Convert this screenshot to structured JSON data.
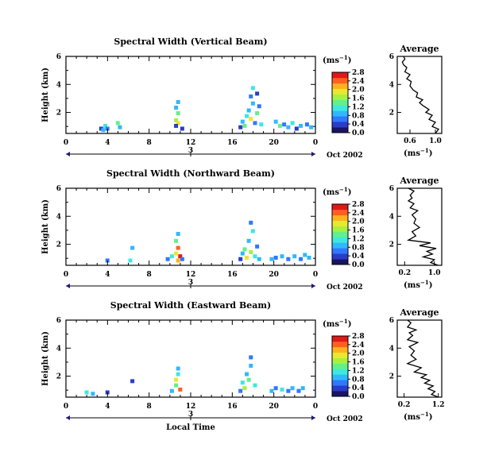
{
  "figure": {
    "xlabel": "Local Time",
    "date_label": "Oct 2002",
    "day_label": "3",
    "unit_label": "(ms⁻¹)",
    "colorscale": [
      "#1a1466",
      "#2a3cc8",
      "#2f78ff",
      "#30b8ff",
      "#3ee8e0",
      "#62f08a",
      "#a8f040",
      "#e8e830",
      "#ffb020",
      "#ff6020",
      "#e01818"
    ]
  },
  "chart_data": [
    {
      "id": "vertical",
      "type": "heatmap",
      "title": "Spectral Width (Vertical Beam)",
      "xlabel": "",
      "ylabel": "Height (km)",
      "x_ticks": [
        "0",
        "4",
        "8",
        "12",
        "16",
        "20",
        "0"
      ],
      "y_ticks": [
        "2",
        "4",
        "6"
      ],
      "xlim": [
        0,
        24
      ],
      "ylim": [
        0.5,
        6
      ],
      "colorbar": {
        "label": "(ms⁻¹)",
        "ticks": [
          "0.0",
          "0.4",
          "0.8",
          "1.2",
          "1.6",
          "2.0",
          "2.4",
          "2.8"
        ],
        "range": [
          0,
          2.8
        ]
      },
      "cells": [
        [
          3.2,
          0.7,
          0.5
        ],
        [
          3.4,
          0.6,
          0.8
        ],
        [
          3.6,
          0.9,
          1.2
        ],
        [
          3.8,
          0.7,
          0.6
        ],
        [
          4.8,
          1.1,
          1.4
        ],
        [
          5.0,
          0.8,
          0.9
        ],
        [
          10.4,
          1.3,
          1.6
        ],
        [
          10.6,
          1.1,
          2.0
        ],
        [
          10.6,
          1.8,
          1.4
        ],
        [
          10.4,
          2.2,
          0.9
        ],
        [
          10.6,
          2.6,
          1.0
        ],
        [
          10.4,
          0.9,
          0.5
        ],
        [
          11.0,
          0.7,
          0.3
        ],
        [
          16.6,
          0.8,
          0.4
        ],
        [
          16.8,
          1.2,
          1.0
        ],
        [
          17.0,
          0.9,
          1.5
        ],
        [
          17.2,
          1.6,
          1.2
        ],
        [
          17.4,
          2.0,
          0.8
        ],
        [
          17.6,
          1.4,
          1.9
        ],
        [
          17.8,
          2.5,
          1.0
        ],
        [
          17.6,
          3.0,
          0.6
        ],
        [
          17.8,
          3.6,
          1.1
        ],
        [
          18.0,
          1.1,
          0.6
        ],
        [
          18.2,
          1.8,
          1.4
        ],
        [
          18.4,
          2.3,
          0.7
        ],
        [
          18.6,
          1.0,
          1.2
        ],
        [
          18.2,
          3.2,
          0.5
        ],
        [
          20.0,
          1.2,
          0.8
        ],
        [
          20.4,
          0.9,
          1.3
        ],
        [
          20.8,
          1.0,
          0.6
        ],
        [
          21.2,
          0.8,
          0.9
        ],
        [
          21.6,
          1.1,
          1.1
        ],
        [
          22.0,
          0.7,
          0.5
        ],
        [
          22.4,
          0.9,
          0.9
        ],
        [
          23.0,
          1.0,
          0.7
        ],
        [
          23.4,
          0.8,
          1.0
        ]
      ],
      "average": {
        "title": "Average",
        "xlabel": "(ms⁻¹)",
        "x_ticks": [
          "0.6",
          "1.0"
        ],
        "y_ticks": [
          "2",
          "4",
          "6"
        ],
        "xlim": [
          0.4,
          1.1
        ],
        "ylim": [
          0.5,
          6
        ],
        "x": [
          1.0,
          1.05,
          0.95,
          1.0,
          0.9,
          0.95,
          0.85,
          0.9,
          0.8,
          0.75,
          0.8,
          0.7,
          0.72,
          0.65,
          0.6,
          0.62,
          0.55,
          0.6,
          0.52,
          0.55,
          0.5,
          0.48,
          0.52,
          0.5
        ],
        "y": [
          0.5,
          0.8,
          1.0,
          1.3,
          1.5,
          1.8,
          2.0,
          2.2,
          2.5,
          2.7,
          2.9,
          3.1,
          3.4,
          3.6,
          3.9,
          4.2,
          4.4,
          4.7,
          4.9,
          5.2,
          5.4,
          5.6,
          5.8,
          6.0
        ]
      }
    },
    {
      "id": "northward",
      "type": "heatmap",
      "title": "Spectral Width (Northward Beam)",
      "xlabel": "",
      "ylabel": "Height (km)",
      "x_ticks": [
        "0",
        "4",
        "8",
        "12",
        "16",
        "20",
        "0"
      ],
      "y_ticks": [
        "2",
        "4",
        "6"
      ],
      "xlim": [
        0,
        24
      ],
      "ylim": [
        0.5,
        6
      ],
      "colorbar": {
        "label": "(ms⁻¹)",
        "ticks": [
          "0.0",
          "0.4",
          "0.8",
          "1.2",
          "1.6",
          "2.0",
          "2.4",
          "2.8"
        ],
        "range": [
          0,
          2.8
        ]
      },
      "cells": [
        [
          3.8,
          0.7,
          0.6
        ],
        [
          6.2,
          1.6,
          0.9
        ],
        [
          6.0,
          0.7,
          1.1
        ],
        [
          9.6,
          0.8,
          0.7
        ],
        [
          10.0,
          1.0,
          1.2
        ],
        [
          10.4,
          1.2,
          1.9
        ],
        [
          10.6,
          1.6,
          2.4
        ],
        [
          10.4,
          2.1,
          1.4
        ],
        [
          10.6,
          2.6,
          1.0
        ],
        [
          10.8,
          1.0,
          2.6
        ],
        [
          10.6,
          0.7,
          2.2
        ],
        [
          11.0,
          0.8,
          0.6
        ],
        [
          16.6,
          0.8,
          0.5
        ],
        [
          16.8,
          1.2,
          1.0
        ],
        [
          17.0,
          1.5,
          1.4
        ],
        [
          17.2,
          0.9,
          1.9
        ],
        [
          17.4,
          2.1,
          0.8
        ],
        [
          17.6,
          1.3,
          1.6
        ],
        [
          17.8,
          2.8,
          1.1
        ],
        [
          17.6,
          3.4,
          0.6
        ],
        [
          18.0,
          1.0,
          1.2
        ],
        [
          18.2,
          1.7,
          0.7
        ],
        [
          18.4,
          0.8,
          0.9
        ],
        [
          19.6,
          0.8,
          1.0
        ],
        [
          20.0,
          0.9,
          0.6
        ],
        [
          20.6,
          1.0,
          0.9
        ],
        [
          21.2,
          0.8,
          0.7
        ],
        [
          21.8,
          1.0,
          1.0
        ],
        [
          22.4,
          0.8,
          0.6
        ],
        [
          22.8,
          1.1,
          0.9
        ],
        [
          23.2,
          0.9,
          0.8
        ]
      ],
      "average": {
        "title": "Average",
        "xlabel": "(ms⁻¹)",
        "x_ticks": [
          "0.2",
          "1.0"
        ],
        "y_ticks": [
          "2",
          "4",
          "6"
        ],
        "xlim": [
          0.0,
          1.2
        ],
        "ylim": [
          0.5,
          6
        ],
        "x": [
          1.1,
          0.9,
          1.0,
          0.7,
          0.95,
          0.8,
          1.05,
          0.6,
          0.9,
          0.3,
          0.5,
          0.4,
          0.6,
          0.45,
          0.5,
          0.4,
          0.55,
          0.35,
          0.45,
          0.3,
          0.4,
          0.35,
          0.45,
          0.3
        ],
        "y": [
          0.5,
          0.7,
          0.9,
          1.1,
          1.3,
          1.5,
          1.7,
          1.9,
          2.1,
          2.3,
          2.6,
          2.9,
          3.2,
          3.5,
          3.8,
          4.1,
          4.4,
          4.6,
          4.9,
          5.1,
          5.3,
          5.5,
          5.8,
          6.0
        ]
      }
    },
    {
      "id": "eastward",
      "type": "heatmap",
      "title": "Spectral Width (Eastward Beam)",
      "xlabel": "Local Time",
      "ylabel": "Height (km)",
      "x_ticks": [
        "0",
        "4",
        "8",
        "12",
        "16",
        "20",
        "0"
      ],
      "y_ticks": [
        "2",
        "4",
        "6"
      ],
      "xlim": [
        0,
        24
      ],
      "ylim": [
        0.5,
        6
      ],
      "colorbar": {
        "label": "(ms⁻¹)",
        "ticks": [
          "0.0",
          "0.4",
          "0.8",
          "1.2",
          "1.6",
          "2.0",
          "2.4",
          "2.8"
        ],
        "range": [
          0,
          2.8
        ]
      },
      "cells": [
        [
          1.8,
          0.7,
          1.2
        ],
        [
          2.4,
          0.6,
          0.8
        ],
        [
          3.8,
          0.7,
          0.5
        ],
        [
          6.2,
          1.5,
          0.4
        ],
        [
          10.0,
          0.8,
          0.8
        ],
        [
          10.4,
          1.2,
          1.4
        ],
        [
          10.4,
          1.6,
          2.0
        ],
        [
          10.6,
          2.0,
          1.2
        ],
        [
          10.6,
          2.4,
          0.9
        ],
        [
          10.8,
          0.9,
          2.3
        ],
        [
          16.6,
          0.8,
          0.6
        ],
        [
          16.8,
          1.4,
          1.2
        ],
        [
          17.0,
          1.0,
          1.6
        ],
        [
          17.2,
          2.0,
          0.9
        ],
        [
          17.4,
          1.6,
          1.3
        ],
        [
          17.6,
          2.6,
          1.0
        ],
        [
          17.6,
          3.2,
          0.6
        ],
        [
          18.0,
          1.2,
          1.1
        ],
        [
          19.6,
          0.8,
          0.9
        ],
        [
          20.0,
          1.0,
          0.6
        ],
        [
          20.6,
          0.9,
          1.1
        ],
        [
          21.2,
          0.8,
          0.7
        ],
        [
          21.6,
          1.0,
          0.9
        ],
        [
          22.2,
          0.8,
          0.6
        ],
        [
          22.6,
          1.0,
          1.0
        ]
      ],
      "average": {
        "title": "Average",
        "xlabel": "(ms⁻¹)",
        "x_ticks": [
          "0.2",
          "1.2"
        ],
        "y_ticks": [
          "2",
          "4",
          "6"
        ],
        "xlim": [
          0.0,
          1.3
        ],
        "ylim": [
          0.5,
          6
        ],
        "x": [
          1.2,
          1.0,
          1.1,
          0.9,
          1.05,
          0.8,
          0.95,
          0.7,
          0.85,
          0.5,
          0.7,
          0.3,
          0.55,
          0.4,
          0.5,
          0.35,
          0.6,
          0.3,
          0.45,
          0.35,
          0.55,
          0.3,
          0.4,
          0.3
        ],
        "y": [
          0.5,
          0.7,
          0.9,
          1.1,
          1.3,
          1.5,
          1.7,
          1.9,
          2.1,
          2.3,
          2.6,
          2.9,
          3.2,
          3.5,
          3.8,
          4.1,
          4.4,
          4.6,
          4.9,
          5.1,
          5.3,
          5.5,
          5.8,
          6.0
        ]
      }
    }
  ]
}
